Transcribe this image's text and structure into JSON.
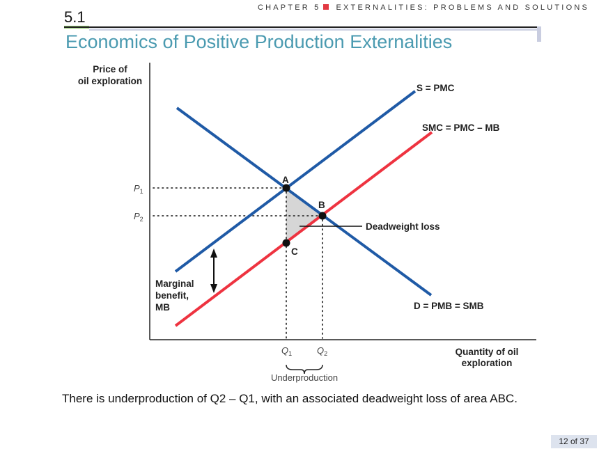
{
  "header": {
    "chapter": "CHAPTER 5",
    "chapter_title": "EXTERNALITIES: PROBLEMS AND SOLUTIONS",
    "section": "5.1",
    "title": "Economics of Positive Production Externalities"
  },
  "diagram": {
    "y_axis_label_1": "Price of",
    "y_axis_label_2": "oil exploration",
    "x_axis_label_1": "Quantity of oil",
    "x_axis_label_2": "exploration",
    "supply_curve": "S = PMC",
    "social_cost_curve": "SMC = PMC – MB",
    "demand_curve": "D = PMB = SMB",
    "mb_label_1": "Marginal",
    "mb_label_2": "benefit,",
    "mb_label_3": "MB",
    "deadweight_loss": "Deadweight loss",
    "point_a": "A",
    "point_b": "B",
    "point_c": "C",
    "p1": "P",
    "p1_sub": "1",
    "p2": "P",
    "p2_sub": "2",
    "q1": "Q",
    "q1_sub": "1",
    "q2": "Q",
    "q2_sub": "2",
    "underproduction": "Underproduction",
    "colors": {
      "blue": "#1f5aa6",
      "red": "#ee3340",
      "shade": "#d6d6d6"
    }
  },
  "caption": "There is underproduction of Q2 – Q1, with an associated deadweight loss of area ABC.",
  "page": "12 of 37"
}
